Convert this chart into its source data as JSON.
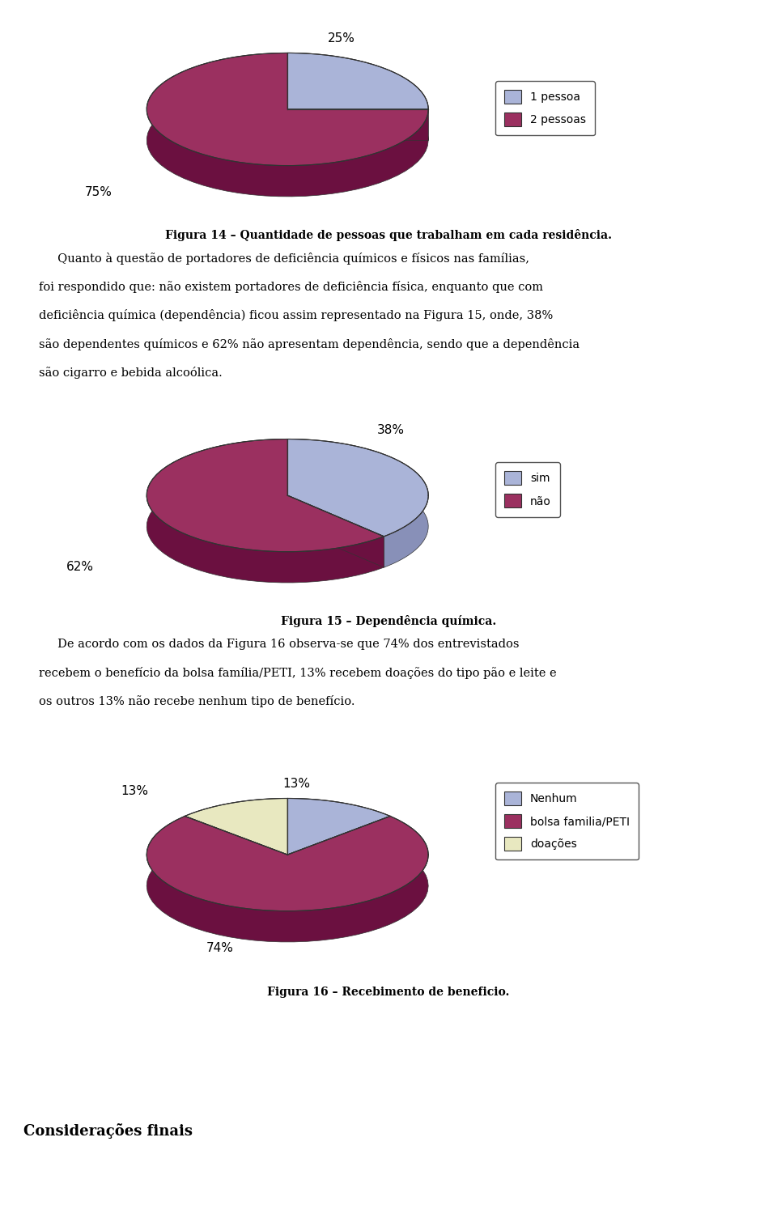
{
  "chart1": {
    "values": [
      25,
      75
    ],
    "colors_top": [
      "#aab4d8",
      "#9b3060"
    ],
    "colors_side": [
      "#8890b8",
      "#6b1040"
    ],
    "labels": [
      "1 pessoa",
      "2 pessoas"
    ],
    "pct_labels": [
      "25%",
      "75%"
    ],
    "startangle": 90,
    "caption": "Figura 14 – Quantidade de pessoas que trabalham em cada residência."
  },
  "chart2": {
    "values": [
      38,
      62
    ],
    "colors_top": [
      "#aab4d8",
      "#9b3060"
    ],
    "colors_side": [
      "#8890b8",
      "#6b1040"
    ],
    "labels": [
      "sim",
      "não"
    ],
    "pct_labels": [
      "38%",
      "62%"
    ],
    "startangle": 90,
    "caption": "Figura 15 – Dependência química."
  },
  "chart3": {
    "values": [
      13,
      74,
      13
    ],
    "colors_top": [
      "#aab4d8",
      "#9b3060",
      "#e8e8c0"
    ],
    "colors_side": [
      "#8890b8",
      "#6b1040",
      "#c8c8a0"
    ],
    "labels": [
      "Nenhum",
      "bolsa familia/PETI",
      "doações"
    ],
    "pct_labels": [
      "13%",
      "74%",
      "13%"
    ],
    "startangle": 90,
    "caption": "Figura 16 – Recebimento de beneficio."
  },
  "text_blocks": [
    "     Quanto à questão de portadores de deficiência químicos e físicos nas famílias,",
    "foi respondido que: não existem portadores de deficiência física, enquanto que com",
    "deficiência química (dependência) ficou assim representado na Figura 15, onde, 38%",
    "são dependentes químicos e 62% não apresentam dependência, sendo que a dependência",
    "são cigarro e bebida alcoólica."
  ],
  "text_blocks2": [
    "     De acordo com os dados da Figura 16 observa-se que 74% dos entrevistados",
    "recebem o benefício da bolsa família/PETI, 13% recebem doações do tipo pão e leite e",
    "os outros 13% não recebe nenhum tipo de benefício."
  ],
  "final_heading": "Considerações finais",
  "bg_color": "#ffffff"
}
